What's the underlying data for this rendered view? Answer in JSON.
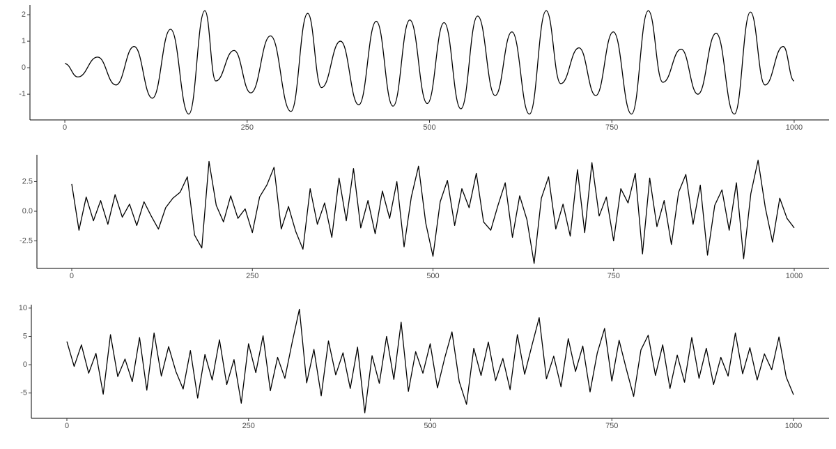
{
  "chart_data": [
    {
      "type": "line",
      "smooth": true,
      "color": "#000000",
      "x": [
        0,
        18,
        45,
        70,
        95,
        120,
        145,
        170,
        192,
        207,
        232,
        255,
        282,
        310,
        333,
        352,
        378,
        403,
        427,
        450,
        473,
        497,
        520,
        543,
        566,
        590,
        613,
        637,
        660,
        680,
        705,
        728,
        752,
        777,
        800,
        820,
        845,
        868,
        893,
        918,
        940,
        960,
        985,
        1000
      ],
      "values": [
        0.15,
        -0.35,
        0.4,
        -0.65,
        0.8,
        -1.15,
        1.45,
        -1.75,
        2.15,
        -0.5,
        0.65,
        -0.95,
        1.2,
        -1.65,
        2.05,
        -0.75,
        1.0,
        -1.4,
        1.75,
        -1.45,
        1.8,
        -1.35,
        1.7,
        -1.55,
        1.95,
        -1.05,
        1.35,
        -1.75,
        2.15,
        -0.6,
        0.75,
        -1.05,
        1.35,
        -1.75,
        2.15,
        -0.55,
        0.7,
        -1.0,
        1.3,
        -1.75,
        2.1,
        -0.65,
        0.8,
        -0.5
      ],
      "xlim": [
        -47.8,
        1047.8
      ],
      "ylim": [
        -1.97,
        2.37
      ],
      "xticks": [
        0,
        250,
        500,
        750,
        1000
      ],
      "yticks": [
        -1,
        0,
        1,
        2
      ]
    },
    {
      "type": "line",
      "smooth": false,
      "color": "#000000",
      "x": [
        0,
        10,
        20,
        30,
        40,
        50,
        60,
        70,
        80,
        90,
        100,
        110,
        120,
        130,
        140,
        150,
        160,
        170,
        180,
        190,
        200,
        210,
        220,
        230,
        240,
        250,
        260,
        270,
        280,
        290,
        300,
        310,
        320,
        330,
        340,
        350,
        360,
        370,
        380,
        390,
        400,
        410,
        420,
        430,
        440,
        450,
        460,
        470,
        480,
        490,
        500,
        510,
        520,
        530,
        540,
        550,
        560,
        570,
        580,
        590,
        600,
        610,
        620,
        630,
        640,
        650,
        660,
        670,
        680,
        690,
        700,
        710,
        720,
        730,
        740,
        750,
        760,
        770,
        780,
        790,
        800,
        810,
        820,
        830,
        840,
        850,
        860,
        870,
        880,
        890,
        900,
        910,
        920,
        930,
        940,
        950,
        960,
        970,
        980,
        990,
        1000
      ],
      "values": [
        2.3,
        -1.6,
        1.2,
        -0.8,
        0.9,
        -1.1,
        1.4,
        -0.5,
        0.6,
        -1.2,
        0.8,
        -0.4,
        -1.5,
        0.3,
        1.1,
        1.6,
        2.9,
        -2.0,
        -3.1,
        4.2,
        0.5,
        -0.9,
        1.3,
        -0.6,
        0.2,
        -1.8,
        1.2,
        2.2,
        3.7,
        -1.5,
        0.4,
        -1.7,
        -3.2,
        1.9,
        -1.1,
        0.7,
        -2.2,
        2.8,
        -0.8,
        3.6,
        -1.4,
        0.9,
        -1.9,
        1.7,
        -0.6,
        2.5,
        -3.0,
        1.2,
        3.8,
        -1.0,
        -3.8,
        0.8,
        2.6,
        -1.2,
        1.9,
        0.3,
        3.2,
        -0.9,
        -1.6,
        0.5,
        2.4,
        -2.2,
        1.3,
        -0.7,
        -4.4,
        1.1,
        2.9,
        -1.5,
        0.6,
        -2.1,
        3.5,
        -1.8,
        4.1,
        -0.4,
        1.2,
        -2.5,
        1.9,
        0.7,
        3.2,
        -3.6,
        2.8,
        -1.3,
        0.9,
        -2.8,
        1.6,
        3.1,
        -1.1,
        2.2,
        -3.7,
        0.5,
        1.8,
        -1.6,
        2.4,
        -4.0,
        1.5,
        4.3,
        0.3,
        -2.6,
        1.1,
        -0.6,
        -1.4
      ],
      "xlim": [
        -48.2,
        1048.2
      ],
      "ylim": [
        -4.82,
        4.76
      ],
      "xticks": [
        0,
        250,
        500,
        750,
        1000
      ],
      "yticks": [
        -2.5,
        {
          "value": 0,
          "label": "0.0"
        },
        2.5
      ]
    },
    {
      "type": "line",
      "smooth": false,
      "color": "#000000",
      "x": [
        0,
        10,
        20,
        30,
        40,
        50,
        60,
        70,
        80,
        90,
        100,
        110,
        120,
        130,
        140,
        150,
        160,
        170,
        180,
        190,
        200,
        210,
        220,
        230,
        240,
        250,
        260,
        270,
        280,
        290,
        300,
        310,
        320,
        330,
        340,
        350,
        360,
        370,
        380,
        390,
        400,
        410,
        420,
        430,
        440,
        450,
        460,
        470,
        480,
        490,
        500,
        510,
        520,
        530,
        540,
        550,
        560,
        570,
        580,
        590,
        600,
        610,
        620,
        630,
        640,
        650,
        660,
        670,
        680,
        690,
        700,
        710,
        720,
        730,
        740,
        750,
        760,
        770,
        780,
        790,
        800,
        810,
        820,
        830,
        840,
        850,
        860,
        870,
        880,
        890,
        900,
        910,
        920,
        930,
        940,
        950,
        960,
        970,
        980,
        990,
        1000
      ],
      "values": [
        4.1,
        -0.3,
        3.5,
        -1.5,
        2.0,
        -5.2,
        5.3,
        -2.1,
        1.0,
        -3.0,
        4.8,
        -4.5,
        5.6,
        -2.0,
        3.2,
        -1.2,
        -4.3,
        2.5,
        -5.9,
        1.8,
        -2.7,
        4.4,
        -3.5,
        0.9,
        -6.8,
        3.7,
        -1.4,
        5.1,
        -4.6,
        1.3,
        -2.4,
        3.9,
        9.8,
        -3.2,
        2.7,
        -5.5,
        4.2,
        -1.8,
        2.1,
        -4.2,
        3.1,
        -8.5,
        1.6,
        -3.3,
        5.0,
        -2.6,
        7.5,
        -4.7,
        2.3,
        -1.5,
        3.7,
        -4.1,
        1.2,
        5.8,
        -3.0,
        -7.0,
        2.9,
        -1.9,
        4.0,
        -2.8,
        1.1,
        -4.4,
        5.3,
        -1.7,
        3.4,
        8.3,
        -2.5,
        1.5,
        -3.9,
        4.6,
        -1.2,
        3.3,
        -4.8,
        2.1,
        6.4,
        -2.9,
        4.3,
        -0.8,
        -5.6,
        2.6,
        5.2,
        -1.9,
        3.5,
        -4.2,
        1.7,
        -3.1,
        4.8,
        -2.4,
        2.9,
        -3.5,
        1.3,
        -2.0,
        5.6,
        -1.6,
        3.0,
        -2.7,
        1.9,
        -0.9,
        4.9,
        -2.2,
        -5.3
      ],
      "xlim": [
        -48.9,
        1048.9
      ],
      "ylim": [
        -9.47,
        10.6
      ],
      "xticks": [
        0,
        250,
        500,
        750,
        1000
      ],
      "yticks": [
        -5,
        0,
        5,
        10
      ]
    }
  ]
}
